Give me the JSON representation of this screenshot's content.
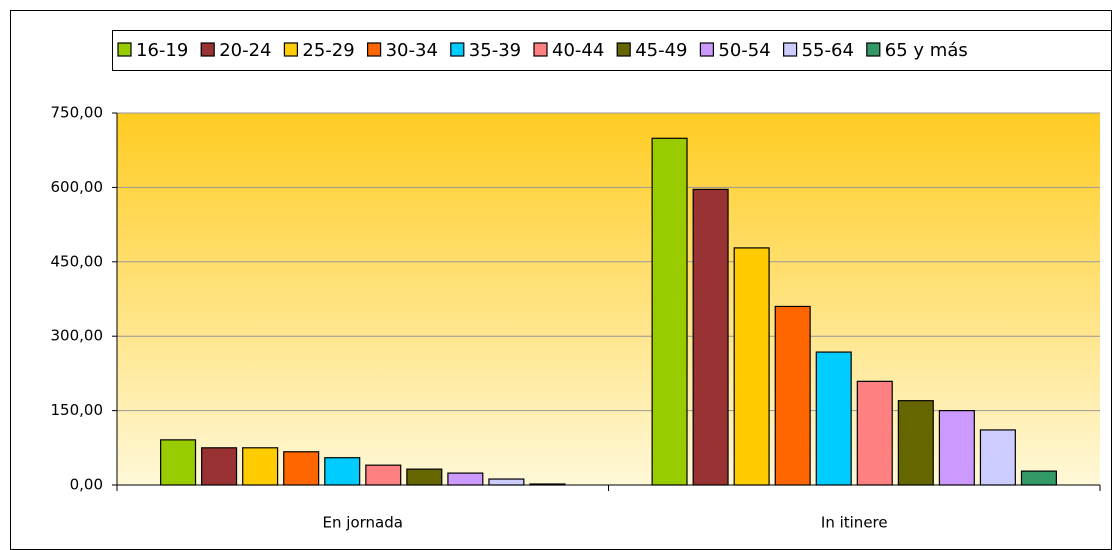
{
  "chart_data": {
    "type": "bar",
    "categories": [
      "En jornada",
      "In itinere"
    ],
    "series": [
      {
        "name": "16-19",
        "color": "#99cc00",
        "values": [
          91,
          699
        ]
      },
      {
        "name": "20-24",
        "color": "#993333",
        "values": [
          75,
          596
        ]
      },
      {
        "name": "25-29",
        "color": "#ffcc00",
        "values": [
          75,
          478
        ]
      },
      {
        "name": "30-34",
        "color": "#ff6600",
        "values": [
          67,
          360
        ]
      },
      {
        "name": "35-39",
        "color": "#00ccff",
        "values": [
          55,
          268
        ]
      },
      {
        "name": "40-44",
        "color": "#ff8080",
        "values": [
          40,
          209
        ]
      },
      {
        "name": "45-49",
        "color": "#666600",
        "values": [
          32,
          170
        ]
      },
      {
        "name": "50-54",
        "color": "#cc99ff",
        "values": [
          24,
          150
        ]
      },
      {
        "name": "55-64",
        "color": "#ccccff",
        "values": [
          12,
          111
        ]
      },
      {
        "name": "65 y más",
        "color": "#339966",
        "values": [
          2,
          28
        ]
      }
    ],
    "ylim": [
      0,
      750
    ],
    "yticks": [
      {
        "value": 0,
        "label": "0,00"
      },
      {
        "value": 150,
        "label": "150,00"
      },
      {
        "value": 300,
        "label": "300,00"
      },
      {
        "value": 450,
        "label": "450,00"
      },
      {
        "value": 600,
        "label": "600,00"
      },
      {
        "value": 750,
        "label": "750,00"
      }
    ],
    "grid": true,
    "legend": "top"
  }
}
